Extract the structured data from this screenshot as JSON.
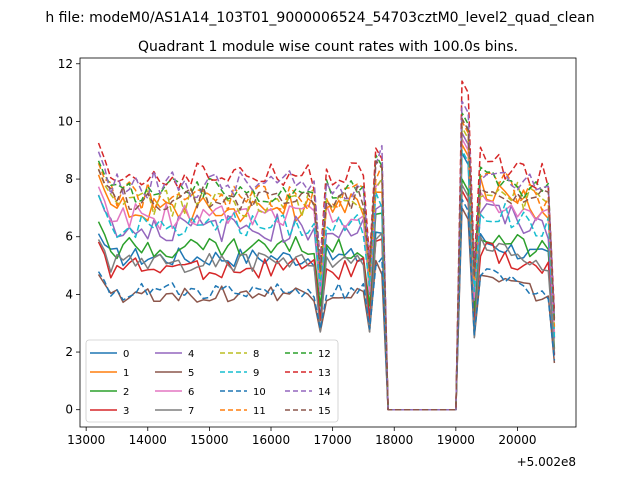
{
  "figure": {
    "suptitle": "h file: modeM0/AS1A14_103T01_9000006524_54703cztM0_level2_quad_clean"
  },
  "chart_data": {
    "type": "line",
    "title": "Quadrant 1 module wise count rates with 100.0s bins.",
    "xlabel": "",
    "ylabel": "",
    "x_offset_label": "+5.002e8",
    "x_ticks": [
      13000,
      14000,
      15000,
      16000,
      17000,
      18000,
      19000,
      20000
    ],
    "y_ticks": [
      0,
      2,
      4,
      6,
      8,
      10,
      12
    ],
    "xlim": [
      12900,
      20950
    ],
    "ylim": [
      -0.6,
      12.2
    ],
    "legend": {
      "placement": "lower-left",
      "columns": 4
    },
    "grid": false,
    "gap": [
      17850,
      19050
    ],
    "x_start": 13200,
    "x_end": 20600,
    "bin": 100,
    "series": [
      {
        "name": "0",
        "color": "#1f77b4",
        "dash": "",
        "base": 5.3,
        "amp": 0.35,
        "end": 4.3,
        "peak": 8.9,
        "low": 3.7
      },
      {
        "name": "1",
        "color": "#ff7f0e",
        "dash": "",
        "base": 7.0,
        "amp": 0.5,
        "end": 5.9,
        "peak": 9.2,
        "low": 4.8
      },
      {
        "name": "2",
        "color": "#2ca02c",
        "dash": "",
        "base": 5.6,
        "amp": 0.4,
        "end": 4.7,
        "peak": 8.0,
        "low": 4.1
      },
      {
        "name": "3",
        "color": "#d62728",
        "dash": "",
        "base": 4.9,
        "amp": 0.4,
        "end": 4.2,
        "peak": 7.6,
        "low": 3.6
      },
      {
        "name": "4",
        "color": "#9467bd",
        "dash": "",
        "base": 6.3,
        "amp": 0.5,
        "end": 5.5,
        "peak": 9.6,
        "low": 4.5
      },
      {
        "name": "5",
        "color": "#8c564b",
        "dash": "",
        "base": 4.0,
        "amp": 0.3,
        "end": 3.6,
        "peak": 7.0,
        "low": 3.2
      },
      {
        "name": "6",
        "color": "#e377c2",
        "dash": "",
        "base": 6.7,
        "amp": 0.45,
        "end": 5.8,
        "peak": 9.4,
        "low": 4.6
      },
      {
        "name": "7",
        "color": "#7f7f7f",
        "dash": "",
        "base": 5.1,
        "amp": 0.35,
        "end": 4.4,
        "peak": 7.8,
        "low": 3.2
      },
      {
        "name": "8",
        "color": "#bcbd22",
        "dash": "6,3",
        "base": 7.2,
        "amp": 0.5,
        "end": 6.1,
        "peak": 9.8,
        "low": 5.0
      },
      {
        "name": "9",
        "color": "#17becf",
        "dash": "6,3",
        "base": 6.4,
        "amp": 0.45,
        "end": 5.6,
        "peak": 9.0,
        "low": 4.8
      },
      {
        "name": "10",
        "color": "#1f77b4",
        "dash": "6,3",
        "base": 4.1,
        "amp": 0.3,
        "end": 3.8,
        "peak": 7.3,
        "low": 3.3
      },
      {
        "name": "11",
        "color": "#ff7f0e",
        "dash": "6,3",
        "base": 7.4,
        "amp": 0.5,
        "end": 6.4,
        "peak": 10.0,
        "low": 5.2
      },
      {
        "name": "12",
        "color": "#2ca02c",
        "dash": "6,3",
        "base": 7.6,
        "amp": 0.45,
        "end": 6.9,
        "peak": 10.3,
        "low": 5.4
      },
      {
        "name": "13",
        "color": "#d62728",
        "dash": "6,3",
        "base": 8.1,
        "amp": 0.5,
        "end": 7.6,
        "peak": 11.4,
        "low": 5.7
      },
      {
        "name": "14",
        "color": "#9467bd",
        "dash": "6,3",
        "base": 7.8,
        "amp": 0.5,
        "end": 7.1,
        "peak": 10.7,
        "low": 5.5
      },
      {
        "name": "15",
        "color": "#8c564b",
        "dash": "6,3",
        "base": 7.3,
        "amp": 0.45,
        "end": 6.7,
        "peak": 10.1,
        "low": 5.3
      }
    ]
  }
}
